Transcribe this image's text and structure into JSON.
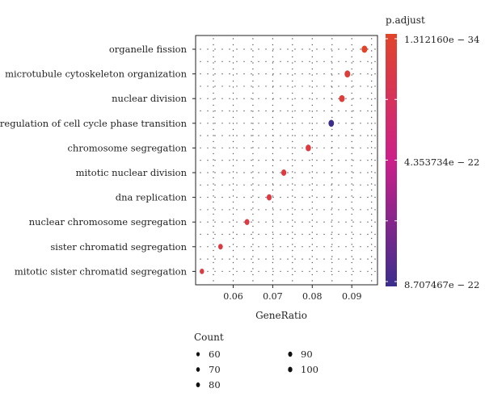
{
  "chart_data": {
    "type": "scatter",
    "title": "",
    "xlabel": "GeneRatio",
    "ylabel": "",
    "xlim": [
      0.0505,
      0.0965
    ],
    "x_ticks": [
      0.06,
      0.07,
      0.08,
      0.09
    ],
    "x_tick_labels": [
      "0.06",
      "0.07",
      "0.08",
      "0.09"
    ],
    "grid": "dotted",
    "categories": [
      "organelle fission",
      "microtubule cytoskeleton organization",
      "nuclear division",
      "regulation of cell cycle phase transition",
      "chromosome segregation",
      "mitotic nuclear division",
      "dna replication",
      "nuclear chromosome segregation",
      "sister chromatid segregation",
      "mitotic sister chromatid segregation"
    ],
    "points": [
      {
        "term": "organelle fission",
        "gene_ratio": 0.0932,
        "count": 100,
        "p_adjust": 1.31e-34
      },
      {
        "term": "microtubule cytoskeleton organization",
        "gene_ratio": 0.0889,
        "count": 96,
        "p_adjust": 1.5e-30
      },
      {
        "term": "nuclear division",
        "gene_ratio": 0.0875,
        "count": 94,
        "p_adjust": 1.4e-30
      },
      {
        "term": "regulation of cell cycle phase transition",
        "gene_ratio": 0.0848,
        "count": 91,
        "p_adjust": 8.7e-22
      },
      {
        "term": "chromosome segregation",
        "gene_ratio": 0.079,
        "count": 85,
        "p_adjust": 2e-29
      },
      {
        "term": "mitotic nuclear division",
        "gene_ratio": 0.0728,
        "count": 78,
        "p_adjust": 2.5e-29
      },
      {
        "term": "dna replication",
        "gene_ratio": 0.0691,
        "count": 74,
        "p_adjust": 3e-29
      },
      {
        "term": "nuclear chromosome segregation",
        "gene_ratio": 0.0635,
        "count": 68,
        "p_adjust": 3.5e-29
      },
      {
        "term": "sister chromatid segregation",
        "gene_ratio": 0.0568,
        "count": 61,
        "p_adjust": 4e-29
      },
      {
        "term": "mitotic sister chromatid segregation",
        "gene_ratio": 0.0521,
        "count": 56,
        "p_adjust": 4.5e-29
      }
    ],
    "color_legend": {
      "title": "p.adjust",
      "labels": [
        "1.312160e − 34",
        "4.353734e − 22",
        "8.707467e − 22"
      ],
      "color_low_p": "#e0452a",
      "color_mid": "#cc1f8a",
      "color_high_p": "#3b2e8c"
    },
    "size_legend": {
      "title": "Count",
      "labels": [
        "60",
        "70",
        "80",
        "90",
        "100"
      ]
    }
  }
}
